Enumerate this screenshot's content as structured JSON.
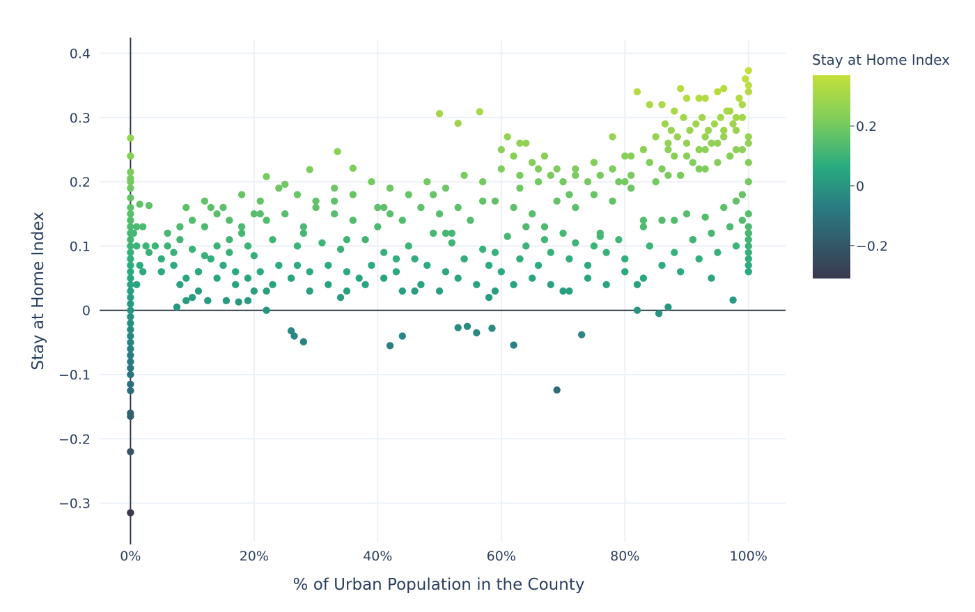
{
  "chart_data": {
    "type": "scatter",
    "title": "",
    "xlabel": "% of Urban Population in the County",
    "ylabel": "Stay at Home Index",
    "xlim": [
      -0.05,
      1.06
    ],
    "ylim": [
      -0.36,
      0.42
    ],
    "x_ticks": [
      {
        "value": 0,
        "label": "0%"
      },
      {
        "value": 0.2,
        "label": "20%"
      },
      {
        "value": 0.4,
        "label": "40%"
      },
      {
        "value": 0.6,
        "label": "60%"
      },
      {
        "value": 0.8,
        "label": "80%"
      },
      {
        "value": 1.0,
        "label": "100%"
      }
    ],
    "y_ticks": [
      {
        "value": 0.4,
        "label": "0.4"
      },
      {
        "value": 0.3,
        "label": "0.3"
      },
      {
        "value": 0.2,
        "label": "0.2"
      },
      {
        "value": 0.1,
        "label": "0.1"
      },
      {
        "value": 0,
        "label": "0"
      },
      {
        "value": -0.1,
        "label": "−0.1"
      },
      {
        "value": -0.2,
        "label": "−0.2"
      },
      {
        "value": -0.3,
        "label": "−0.3"
      }
    ],
    "grid": true,
    "zero_lines": true,
    "colorscale": "viridis-like",
    "colorbar": {
      "title": "Stay at Home Index",
      "range": [
        -0.31,
        0.37
      ],
      "ticks": [
        {
          "value": 0.2,
          "label": "0.2"
        },
        {
          "value": 0,
          "label": "0"
        },
        {
          "value": -0.2,
          "label": "−0.2"
        }
      ],
      "colors": [
        "#3b3850",
        "#2a7b82",
        "#29ab7f",
        "#7fcd5d",
        "#c3df3a"
      ]
    },
    "series": [
      {
        "x": [
          0,
          0,
          0,
          0,
          0,
          0,
          0,
          0,
          0,
          0,
          0,
          0,
          0,
          0,
          0,
          0,
          0,
          0,
          0,
          0,
          0,
          0,
          0,
          0,
          0,
          0,
          0,
          0,
          0,
          0,
          0,
          0,
          0,
          0,
          0,
          0,
          0,
          0,
          0,
          0,
          0.01,
          0.015,
          0.02,
          0.01,
          0.03,
          0.005,
          0.02,
          0.01,
          0.025,
          0.015,
          0.5,
          0.53,
          0.565,
          0.335,
          0.36,
          0.29,
          0.22,
          0.25,
          0.26,
          0.265,
          0.28,
          0.42,
          0.44,
          0.53,
          0.56,
          0.585,
          0.62,
          0.73,
          0.69,
          0.22,
          0.545,
          0.075,
          0.09,
          0.125,
          0.155,
          0.175,
          0.19,
          0.855,
          0.87,
          0.82,
          0.975,
          0.05,
          0.06,
          0.07,
          0.08,
          0.1,
          0.12,
          0.14,
          0.16,
          0.18,
          0.2,
          0.23,
          0.27,
          0.31,
          0.34,
          0.38,
          0.41,
          0.45,
          0.49,
          0.52,
          0.57,
          0.61,
          0.64,
          0.67,
          0.7,
          0.72,
          0.76,
          0.79,
          0.83,
          0.86,
          0.9,
          0.93,
          0.96,
          0.98,
          0.05,
          0.07,
          0.09,
          0.11,
          0.13,
          0.15,
          0.17,
          0.19,
          0.21,
          0.24,
          0.26,
          0.29,
          0.32,
          0.35,
          0.37,
          0.39,
          0.43,
          0.46,
          0.48,
          0.51,
          0.54,
          0.58,
          0.6,
          0.63,
          0.66,
          0.68,
          0.71,
          0.74,
          0.77,
          0.8,
          0.84,
          0.88,
          0.91,
          0.94,
          0.97,
          0.99,
          0.06,
          0.08,
          0.1,
          0.12,
          0.14,
          0.16,
          0.18,
          0.2,
          0.22,
          0.25,
          0.28,
          0.3,
          0.33,
          0.36,
          0.4,
          0.42,
          0.44,
          0.47,
          0.5,
          0.53,
          0.55,
          0.59,
          0.62,
          0.65,
          0.69,
          0.72,
          0.75,
          0.78,
          0.81,
          0.85,
          0.89,
          0.92,
          0.95,
          0.98,
          1.0,
          0.08,
          0.11,
          0.14,
          0.17,
          0.2,
          0.23,
          0.26,
          0.29,
          0.32,
          0.35,
          0.38,
          0.41,
          0.44,
          0.47,
          0.5,
          0.53,
          0.56,
          0.59,
          0.62,
          0.65,
          0.68,
          0.71,
          0.74,
          0.77,
          0.8,
          0.83,
          0.86,
          0.89,
          0.92,
          0.95,
          0.98,
          1.0,
          0.09,
          0.12,
          0.15,
          0.18,
          0.21,
          0.24,
          0.27,
          0.3,
          0.33,
          0.36,
          0.39,
          0.42,
          0.45,
          0.48,
          0.51,
          0.54,
          0.57,
          0.6,
          0.63,
          0.66,
          0.69,
          0.72,
          0.75,
          0.78,
          0.81,
          0.84,
          0.87,
          0.9,
          0.93,
          0.96,
          0.99,
          0.04,
          0.1,
          0.16,
          0.22,
          0.28,
          0.34,
          0.4,
          0.46,
          0.52,
          0.58,
          0.64,
          0.7,
          0.76,
          0.82,
          0.88,
          0.94,
          1.0,
          0.03,
          0.11,
          0.19,
          0.27,
          0.35,
          0.43,
          0.51,
          0.59,
          0.67,
          0.75,
          0.83,
          0.91,
          0.99,
          0.13,
          0.21,
          0.33,
          0.41,
          0.49,
          0.57,
          0.63,
          0.71,
          0.79,
          0.87,
          0.93,
          0.97,
          0.82,
          0.84,
          0.86,
          0.88,
          0.89,
          0.9,
          0.92,
          0.93,
          0.95,
          0.96,
          0.97,
          0.98,
          0.99,
          1.0,
          1.0,
          1.0,
          0.995,
          0.985,
          0.975,
          0.965,
          0.955,
          0.945,
          0.935,
          0.925,
          0.915,
          0.905,
          0.895,
          0.885,
          0.875,
          0.865,
          0.78,
          0.8,
          0.83,
          0.85,
          0.87,
          0.9,
          0.92,
          0.94,
          0.96,
          0.98,
          1.0,
          0.99,
          0.97,
          0.95,
          0.93,
          0.91,
          0.88,
          0.86,
          0.84,
          0.81,
          0.6,
          0.61,
          0.62,
          0.63,
          0.64,
          0.65,
          0.66,
          0.67,
          0.68,
          0.7,
          0.72,
          0.74,
          0.76,
          0.78,
          0.8,
          1.0,
          1.0,
          1.0,
          1.0,
          1.0,
          1.0,
          1.0,
          1.0,
          1.0,
          1.0
        ],
        "y": [
          0.268,
          0.24,
          0.215,
          0.205,
          0.19,
          0.175,
          0.16,
          0.15,
          0.14,
          0.13,
          0.12,
          0.11,
          0.1,
          0.09,
          0.08,
          0.07,
          0.06,
          0.05,
          0.04,
          0.03,
          0.02,
          0.01,
          0.0,
          -0.01,
          -0.02,
          -0.03,
          -0.04,
          -0.05,
          -0.06,
          -0.07,
          -0.08,
          -0.09,
          -0.1,
          -0.115,
          -0.125,
          -0.16,
          -0.165,
          -0.22,
          -0.315,
          0.2,
          0.13,
          0.165,
          0.13,
          0.1,
          0.163,
          0.12,
          0.06,
          0.04,
          0.1,
          0.07,
          0.306,
          0.291,
          0.309,
          0.247,
          0.221,
          0.219,
          0.208,
          0.196,
          -0.032,
          -0.04,
          -0.049,
          -0.055,
          -0.04,
          -0.027,
          -0.035,
          -0.028,
          -0.054,
          -0.038,
          -0.124,
          0.0,
          -0.025,
          0.005,
          0.015,
          0.015,
          0.015,
          0.013,
          0.015,
          -0.005,
          0.005,
          0.0,
          0.016,
          0.08,
          0.1,
          0.09,
          0.11,
          0.095,
          0.085,
          0.1,
          0.09,
          0.12,
          0.085,
          0.11,
          0.1,
          0.105,
          0.095,
          0.11,
          0.09,
          0.1,
          0.12,
          0.105,
          0.095,
          0.115,
          0.1,
          0.11,
          0.12,
          0.105,
          0.115,
          0.11,
          0.13,
          0.14,
          0.15,
          0.145,
          0.16,
          0.17,
          0.06,
          0.07,
          0.05,
          0.06,
          0.08,
          0.07,
          0.06,
          0.05,
          0.06,
          0.07,
          0.05,
          0.06,
          0.07,
          0.06,
          0.05,
          0.07,
          0.06,
          0.08,
          0.07,
          0.06,
          0.08,
          0.07,
          0.06,
          0.08,
          0.07,
          0.09,
          0.08,
          0.07,
          0.09,
          0.08,
          0.1,
          0.09,
          0.11,
          0.12,
          0.13,
          0.14,
          0.12,
          0.13,
          0.14,
          0.13,
          0.15,
          0.14,
          0.13,
          0.15,
          0.14,
          0.15,
          0.13,
          0.16,
          0.15,
          0.14,
          0.16,
          0.15,
          0.14,
          0.16,
          0.15,
          0.16,
          0.14,
          0.17,
          0.16,
          0.15,
          0.17,
          0.16,
          0.18,
          0.17,
          0.19,
          0.2,
          0.21,
          0.22,
          0.23,
          0.25,
          0.27,
          0.04,
          0.03,
          0.05,
          0.04,
          0.03,
          0.04,
          0.05,
          0.03,
          0.04,
          0.03,
          0.04,
          0.05,
          0.03,
          0.04,
          0.03,
          0.05,
          0.04,
          0.03,
          0.04,
          0.05,
          0.04,
          0.03,
          0.05,
          0.04,
          0.06,
          0.05,
          0.07,
          0.06,
          0.08,
          0.09,
          0.1,
          0.12,
          0.16,
          0.17,
          0.16,
          0.18,
          0.17,
          0.19,
          0.18,
          0.17,
          0.19,
          0.18,
          0.2,
          0.19,
          0.18,
          0.2,
          0.19,
          0.21,
          0.2,
          0.22,
          0.21,
          0.2,
          0.22,
          0.21,
          0.23,
          0.22,
          0.24,
          0.23,
          0.25,
          0.26,
          0.27,
          0.28,
          0.3,
          0.1,
          0.02,
          0.11,
          0.03,
          0.12,
          0.02,
          0.13,
          0.03,
          0.12,
          0.02,
          0.13,
          0.03,
          0.12,
          0.04,
          0.14,
          0.05,
          0.15,
          0.09,
          0.06,
          0.1,
          0.07,
          0.11,
          0.08,
          0.12,
          0.09,
          0.13,
          0.1,
          0.14,
          0.11,
          0.18,
          0.16,
          0.15,
          0.17,
          0.16,
          0.18,
          0.17,
          0.19,
          0.18,
          0.2,
          0.21,
          0.22,
          0.24,
          0.34,
          0.32,
          0.32,
          0.31,
          0.345,
          0.33,
          0.33,
          0.33,
          0.34,
          0.345,
          0.31,
          0.3,
          0.32,
          0.373,
          0.34,
          0.35,
          0.36,
          0.33,
          0.29,
          0.31,
          0.3,
          0.29,
          0.28,
          0.3,
          0.29,
          0.28,
          0.3,
          0.27,
          0.28,
          0.29,
          0.27,
          0.24,
          0.25,
          0.27,
          0.26,
          0.24,
          0.25,
          0.26,
          0.27,
          0.28,
          0.26,
          0.25,
          0.24,
          0.26,
          0.25,
          0.23,
          0.24,
          0.22,
          0.23,
          0.21,
          0.25,
          0.27,
          0.24,
          0.26,
          0.26,
          0.23,
          0.22,
          0.24,
          0.21,
          0.2,
          0.22,
          0.2,
          0.21,
          0.22,
          0.2,
          0.06,
          0.07,
          0.08,
          0.09,
          0.1,
          0.11,
          0.12,
          0.13,
          0.2,
          0.23
        ]
      }
    ]
  }
}
